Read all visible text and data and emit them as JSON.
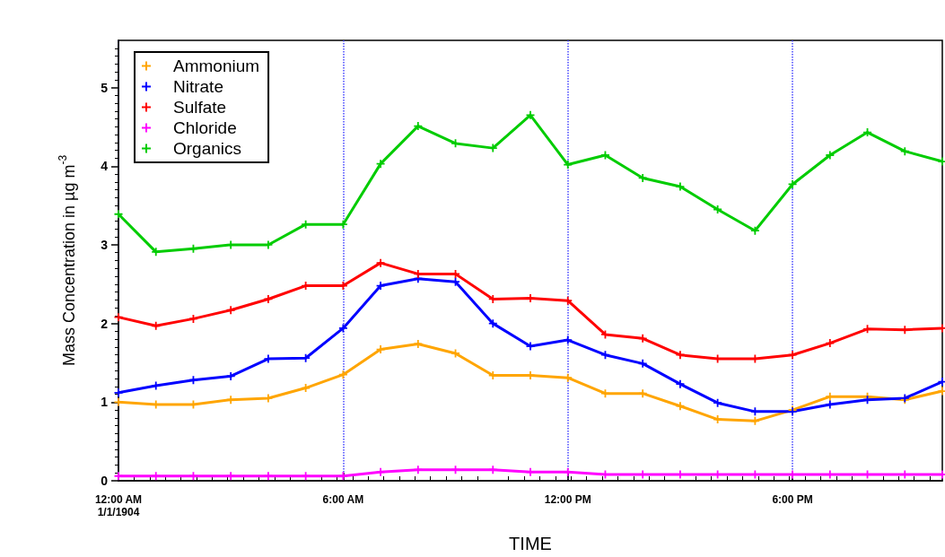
{
  "chart_data": {
    "type": "line",
    "xlabel": "TIME",
    "ylabel": "Mass Concentration in µg m$^{-3}$",
    "x": [
      0,
      1,
      2,
      3,
      4,
      5,
      6,
      7,
      8,
      9,
      10,
      11,
      12,
      13,
      14,
      15,
      16,
      17,
      18,
      19,
      20,
      21,
      22
    ],
    "xlim": [
      0,
      22
    ],
    "xticks": [
      {
        "value": 0,
        "label": "12:00 AM\n1/1/1904"
      },
      {
        "value": 6,
        "label": "6:00 AM"
      },
      {
        "value": 12,
        "label": "12:00 PM"
      },
      {
        "value": 18,
        "label": "6:00 PM"
      }
    ],
    "ylim": [
      0,
      5.6
    ],
    "yticks": [
      0,
      1,
      2,
      3,
      4,
      5
    ],
    "grid": "x",
    "legend": "top left",
    "marker": "cross",
    "line_style": "solid",
    "series": [
      {
        "name": "Ammonium",
        "color": "#ffa500",
        "values": [
          1.0,
          0.97,
          0.97,
          1.03,
          1.05,
          1.18,
          1.35,
          1.67,
          1.74,
          1.62,
          1.34,
          1.34,
          1.31,
          1.11,
          1.11,
          0.95,
          0.78,
          0.76,
          0.9,
          1.07,
          1.07,
          1.03,
          1.14
        ]
      },
      {
        "name": "Nitrate",
        "color": "#0000ff",
        "values": [
          1.12,
          1.21,
          1.28,
          1.33,
          1.55,
          1.56,
          1.94,
          2.48,
          2.57,
          2.53,
          2.0,
          1.71,
          1.79,
          1.6,
          1.49,
          1.23,
          0.99,
          0.88,
          0.88,
          0.97,
          1.03,
          1.05,
          1.26
        ]
      },
      {
        "name": "Sulfate",
        "color": "#ff0000",
        "values": [
          2.08,
          1.97,
          2.06,
          2.17,
          2.31,
          2.48,
          2.48,
          2.77,
          2.63,
          2.63,
          2.31,
          2.32,
          2.29,
          1.86,
          1.81,
          1.6,
          1.55,
          1.55,
          1.6,
          1.75,
          1.93,
          1.92,
          1.94
        ]
      },
      {
        "name": "Chloride",
        "color": "#ff00ff",
        "values": [
          0.06,
          0.06,
          0.06,
          0.06,
          0.06,
          0.06,
          0.06,
          0.11,
          0.14,
          0.14,
          0.14,
          0.11,
          0.11,
          0.08,
          0.08,
          0.08,
          0.08,
          0.08,
          0.08,
          0.08,
          0.08,
          0.08,
          0.08
        ]
      },
      {
        "name": "Organics",
        "color": "#00cc00",
        "values": [
          3.39,
          2.91,
          2.95,
          3.0,
          3.0,
          3.26,
          3.26,
          4.03,
          4.51,
          4.29,
          4.23,
          4.65,
          4.02,
          4.14,
          3.85,
          3.74,
          3.45,
          3.18,
          3.77,
          4.14,
          4.43,
          4.19,
          4.06
        ]
      }
    ]
  }
}
